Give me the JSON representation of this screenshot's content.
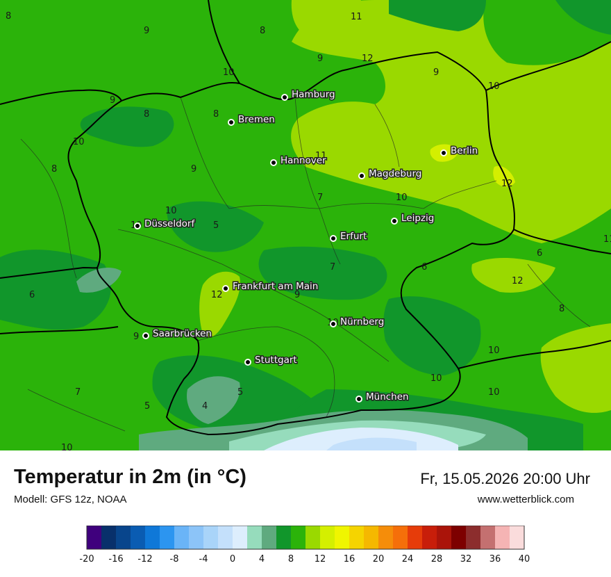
{
  "header": {
    "title": "Temperatur in 2m (in °C)",
    "model": "Modell: GFS 12z, NOAA",
    "datetime": "Fr, 15.05.2026 20:00 Uhr",
    "site": "www.wetterblick.com"
  },
  "cities": [
    {
      "name": "Hamburg"
    },
    {
      "name": "Bremen"
    },
    {
      "name": "Hannover"
    },
    {
      "name": "Berlin"
    },
    {
      "name": "Magdeburg"
    },
    {
      "name": "Leipzig"
    },
    {
      "name": "Düsseldorf"
    },
    {
      "name": "Erfurt"
    },
    {
      "name": "Frankfurt am Main"
    },
    {
      "name": "Nürnberg"
    },
    {
      "name": "Saarbrücken"
    },
    {
      "name": "Stuttgart"
    },
    {
      "name": "München"
    }
  ],
  "isoline_labels": [
    "8",
    "9",
    "8",
    "9",
    "11",
    "10",
    "12",
    "9",
    "10",
    "9",
    "8",
    "8",
    "10",
    "8",
    "11",
    "9",
    "7",
    "10",
    "10",
    "10",
    "5",
    "7",
    "6",
    "12",
    "9",
    "12",
    "8",
    "10",
    "9",
    "10",
    "7",
    "5",
    "4",
    "5",
    "10",
    "10",
    "10",
    "12",
    "11",
    "6",
    "6"
  ],
  "legend": {
    "ticks": [
      "-20",
      "-16",
      "-12",
      "-8",
      "-4",
      "0",
      "4",
      "8",
      "12",
      "16",
      "20",
      "24",
      "28",
      "32",
      "36",
      "40"
    ],
    "colors": [
      "#3f007d",
      "#08306b",
      "#08458c",
      "#0a5cb2",
      "#0f78d8",
      "#2c95f0",
      "#6ab4f7",
      "#8cc4f8",
      "#a9d4f9",
      "#c4e0fb",
      "#ddeefd",
      "#96dcbc",
      "#5faa7f",
      "#11962b",
      "#2bb30a",
      "#9ad900",
      "#d4ef00",
      "#f0f500",
      "#f5d400",
      "#f5b800",
      "#f58d0a",
      "#f56f0a",
      "#e63c0a",
      "#c81e0a",
      "#aa140a",
      "#7d0000",
      "#8c2d2d",
      "#c47070",
      "#f5b4b4",
      "#fadcdc"
    ]
  }
}
